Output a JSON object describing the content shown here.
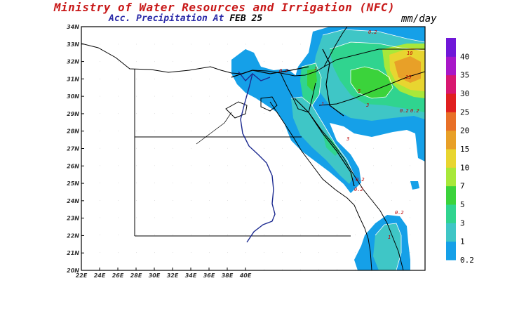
{
  "header": {
    "title": "Ministry of Water Resources and Irrigation (NFC)",
    "subtitle_label": "Acc. Precipitation  At",
    "subtitle_date": "FEB 25",
    "units": "mm/day"
  },
  "map": {
    "lon_ticks": [
      "22E",
      "24E",
      "26E",
      "28E",
      "30E",
      "32E",
      "34E",
      "36E",
      "38E",
      "40E"
    ],
    "lat_ticks": [
      "20N",
      "21N",
      "22N",
      "23N",
      "24N",
      "25N",
      "26N",
      "27N",
      "28N",
      "29N",
      "30N",
      "31N",
      "32N",
      "33N",
      "34N"
    ],
    "lon_range": [
      22,
      41
    ],
    "lat_range": [
      20,
      34
    ]
  },
  "colorbar": {
    "levels": [
      "0.2",
      "1",
      "3",
      "5",
      "7",
      "10",
      "15",
      "20",
      "25",
      "30",
      "35",
      "40"
    ],
    "colors": [
      "#15a0e8",
      "#3fc6c6",
      "#30d48f",
      "#3bd33b",
      "#a8e83a",
      "#e8d530",
      "#e8a028",
      "#e87028",
      "#e02020",
      "#d81870",
      "#a818c8",
      "#7018d8"
    ]
  },
  "contour_labels": [
    "0.2",
    "1",
    "3",
    "5",
    "10",
    "15",
    "0.2",
    "0.2",
    "1",
    "3",
    "0.2",
    "1",
    "0.2",
    "0.2",
    "0.2"
  ]
}
